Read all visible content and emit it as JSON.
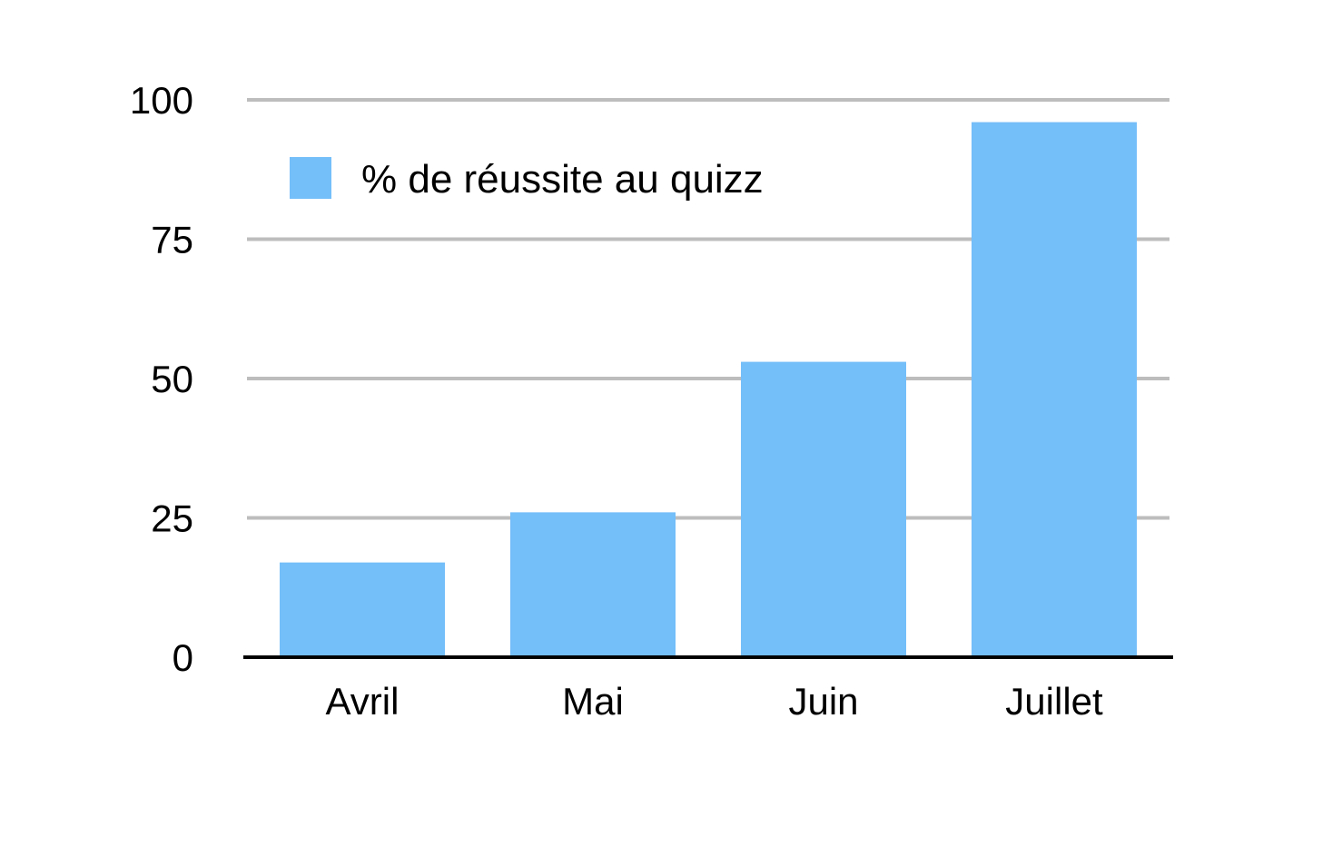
{
  "chart_data": {
    "type": "bar",
    "categories": [
      "Avril",
      "Mai",
      "Juin",
      "Juillet"
    ],
    "series": [
      {
        "name": "% de réussite au quizz",
        "values": [
          17,
          26,
          53,
          96
        ],
        "color": "#74BEF9"
      }
    ],
    "title": "",
    "xlabel": "",
    "ylabel": "",
    "ylim": [
      0,
      100
    ],
    "yticks": [
      0,
      25,
      50,
      75,
      100
    ],
    "ytick_labels": [
      "0",
      "25",
      "50",
      "75",
      "100"
    ],
    "grid": true,
    "legend_position": "top-left",
    "colors": {
      "grid": "#BDBDBD",
      "axis": "#000000",
      "text": "#000000"
    }
  }
}
